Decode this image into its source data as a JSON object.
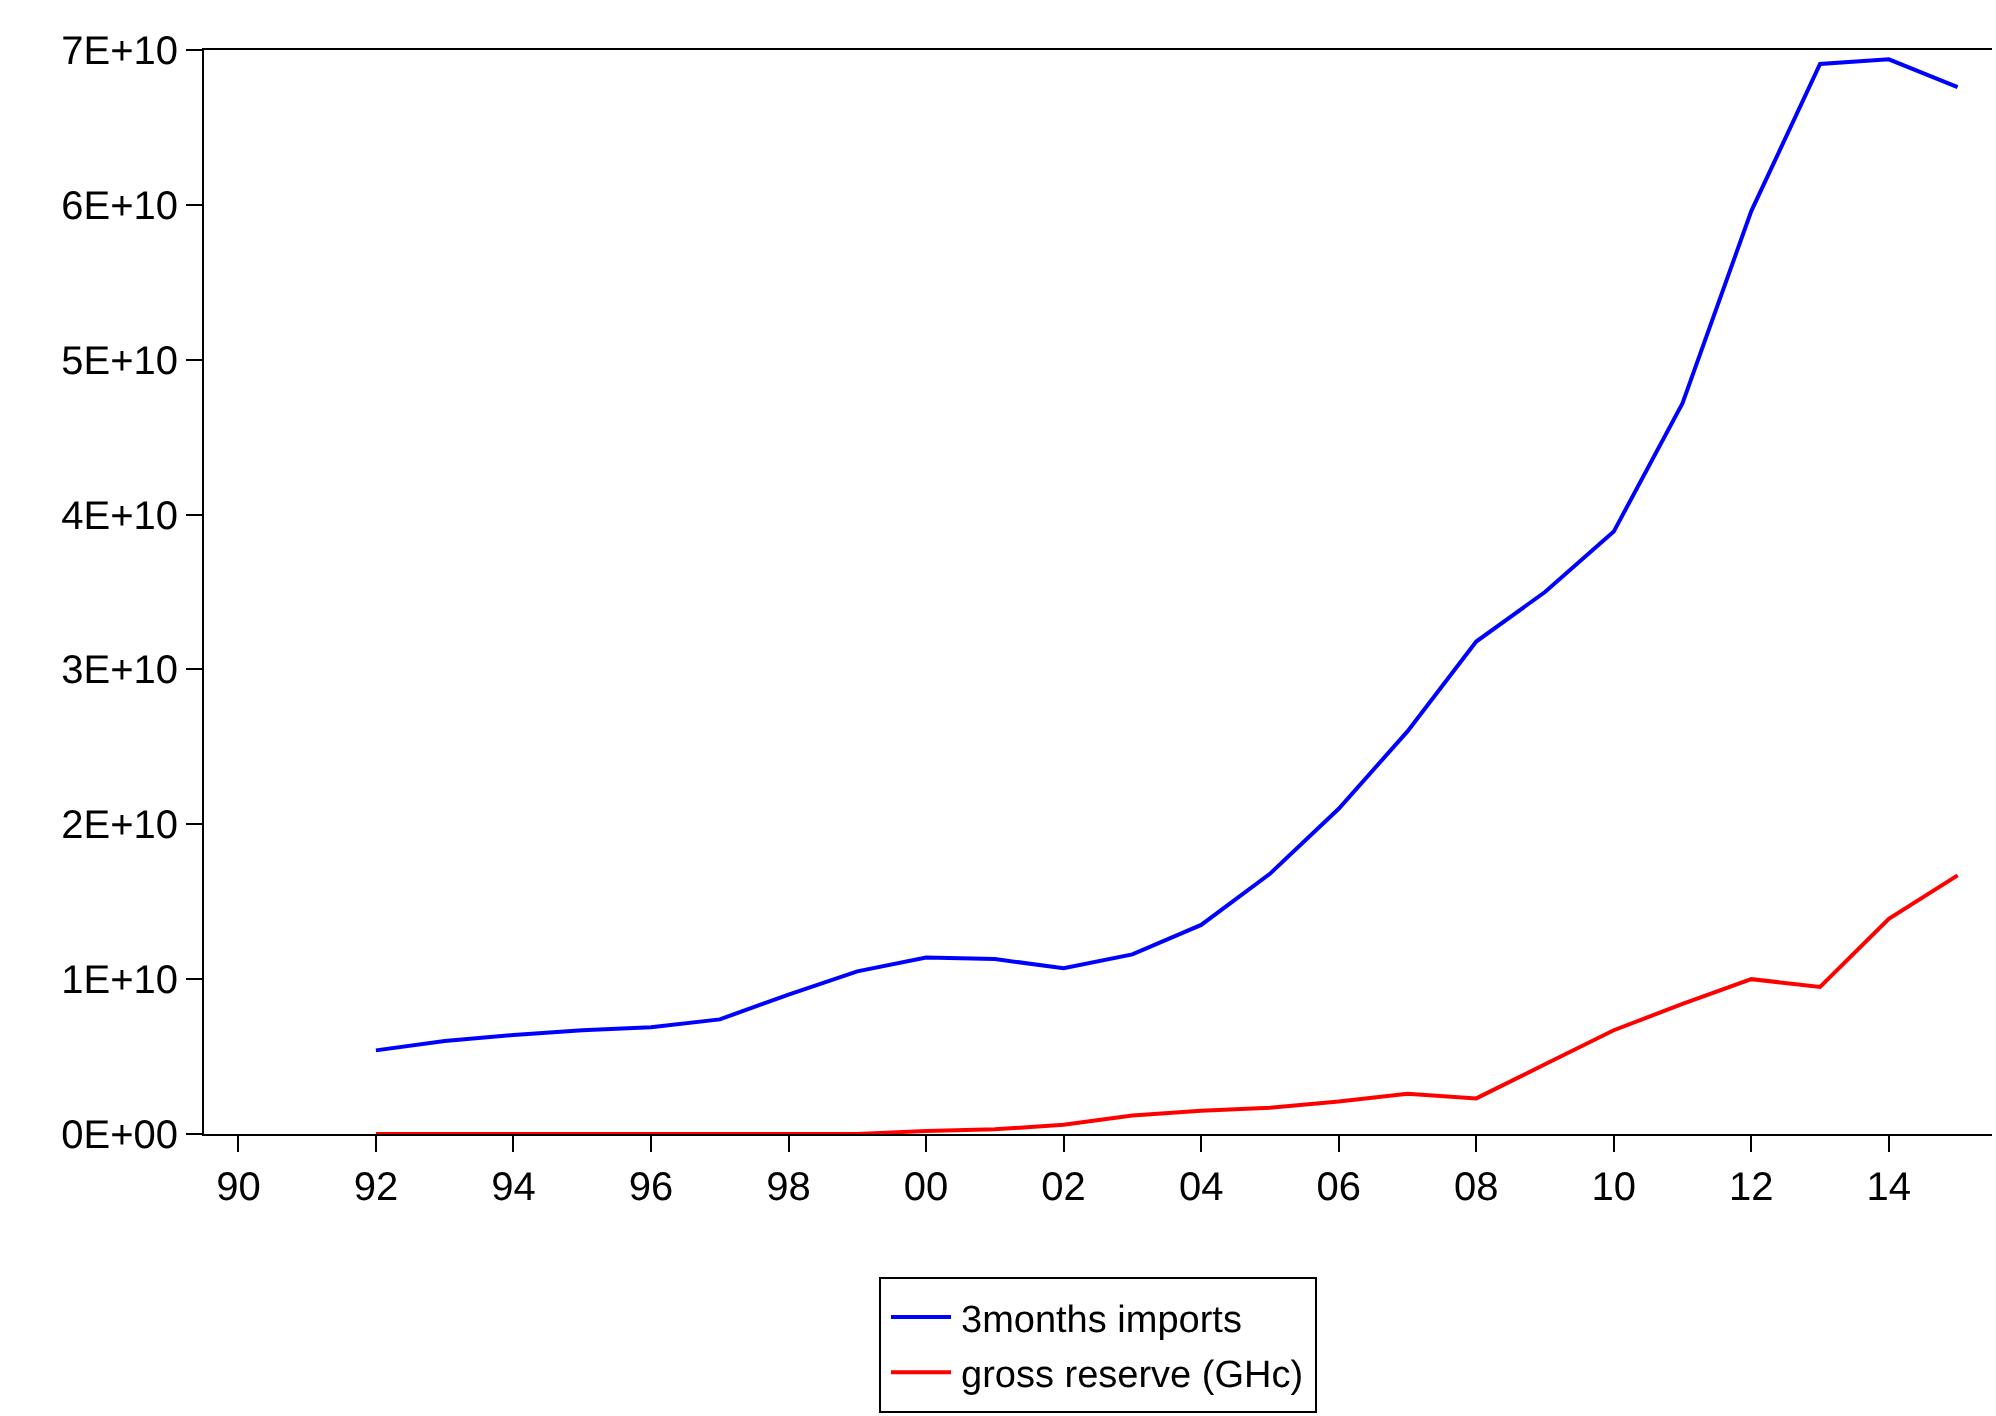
{
  "chart_data": {
    "type": "line",
    "x": [
      1992,
      1993,
      1994,
      1995,
      1996,
      1997,
      1998,
      1999,
      2000,
      2001,
      2002,
      2003,
      2004,
      2005,
      2006,
      2007,
      2008,
      2009,
      2010,
      2011,
      2012,
      2013,
      2014,
      2015
    ],
    "series": [
      {
        "name": "3months imports",
        "color": "#0000ff",
        "values": [
          5400000000.0,
          6000000000.0,
          6400000000.0,
          6700000000.0,
          6900000000.0,
          7400000000.0,
          9000000000.0,
          10500000000.0,
          11400000000.0,
          11300000000.0,
          10700000000.0,
          11600000000.0,
          13500000000.0,
          16800000000.0,
          21000000000.0,
          26000000000.0,
          31800000000.0,
          35000000000.0,
          38900000000.0,
          47200000000.0,
          59600000000.0,
          69100000000.0,
          69400000000.0,
          67600000000.0
        ]
      },
      {
        "name": "gross reserve (GHc)",
        "color": "#ff0000",
        "values": [
          0,
          0,
          0,
          0,
          0,
          0,
          0,
          0,
          200000000.0,
          300000000.0,
          600000000.0,
          1200000000.0,
          1500000000.0,
          1700000000.0,
          2100000000.0,
          2600000000.0,
          2300000000.0,
          4500000000.0,
          6700000000.0,
          8400000000.0,
          10000000000.0,
          9500000000.0,
          13900000000.0,
          16700000000.0
        ]
      }
    ],
    "xlim": [
      1989.5,
      2015.5
    ],
    "xticks": [
      {
        "value": 1990,
        "label": "90"
      },
      {
        "value": 1992,
        "label": "92"
      },
      {
        "value": 1994,
        "label": "94"
      },
      {
        "value": 1996,
        "label": "96"
      },
      {
        "value": 1998,
        "label": "98"
      },
      {
        "value": 2000,
        "label": "00"
      },
      {
        "value": 2002,
        "label": "02"
      },
      {
        "value": 2004,
        "label": "04"
      },
      {
        "value": 2006,
        "label": "06"
      },
      {
        "value": 2008,
        "label": "08"
      },
      {
        "value": 2010,
        "label": "10"
      },
      {
        "value": 2012,
        "label": "12"
      },
      {
        "value": 2014,
        "label": "14"
      }
    ],
    "ylim": [
      0,
      70000000000.0
    ],
    "yticks": [
      {
        "value": 0,
        "label": "0E+00"
      },
      {
        "value": 10000000000.0,
        "label": "1E+10"
      },
      {
        "value": 20000000000.0,
        "label": "2E+10"
      },
      {
        "value": 30000000000.0,
        "label": "3E+10"
      },
      {
        "value": 40000000000.0,
        "label": "4E+10"
      },
      {
        "value": 50000000000.0,
        "label": "5E+10"
      },
      {
        "value": 60000000000.0,
        "label": "6E+10"
      },
      {
        "value": 70000000000.0,
        "label": "7E+10"
      }
    ],
    "grid": false,
    "legend": "bottom",
    "marker": "none",
    "line_style": "solid"
  }
}
